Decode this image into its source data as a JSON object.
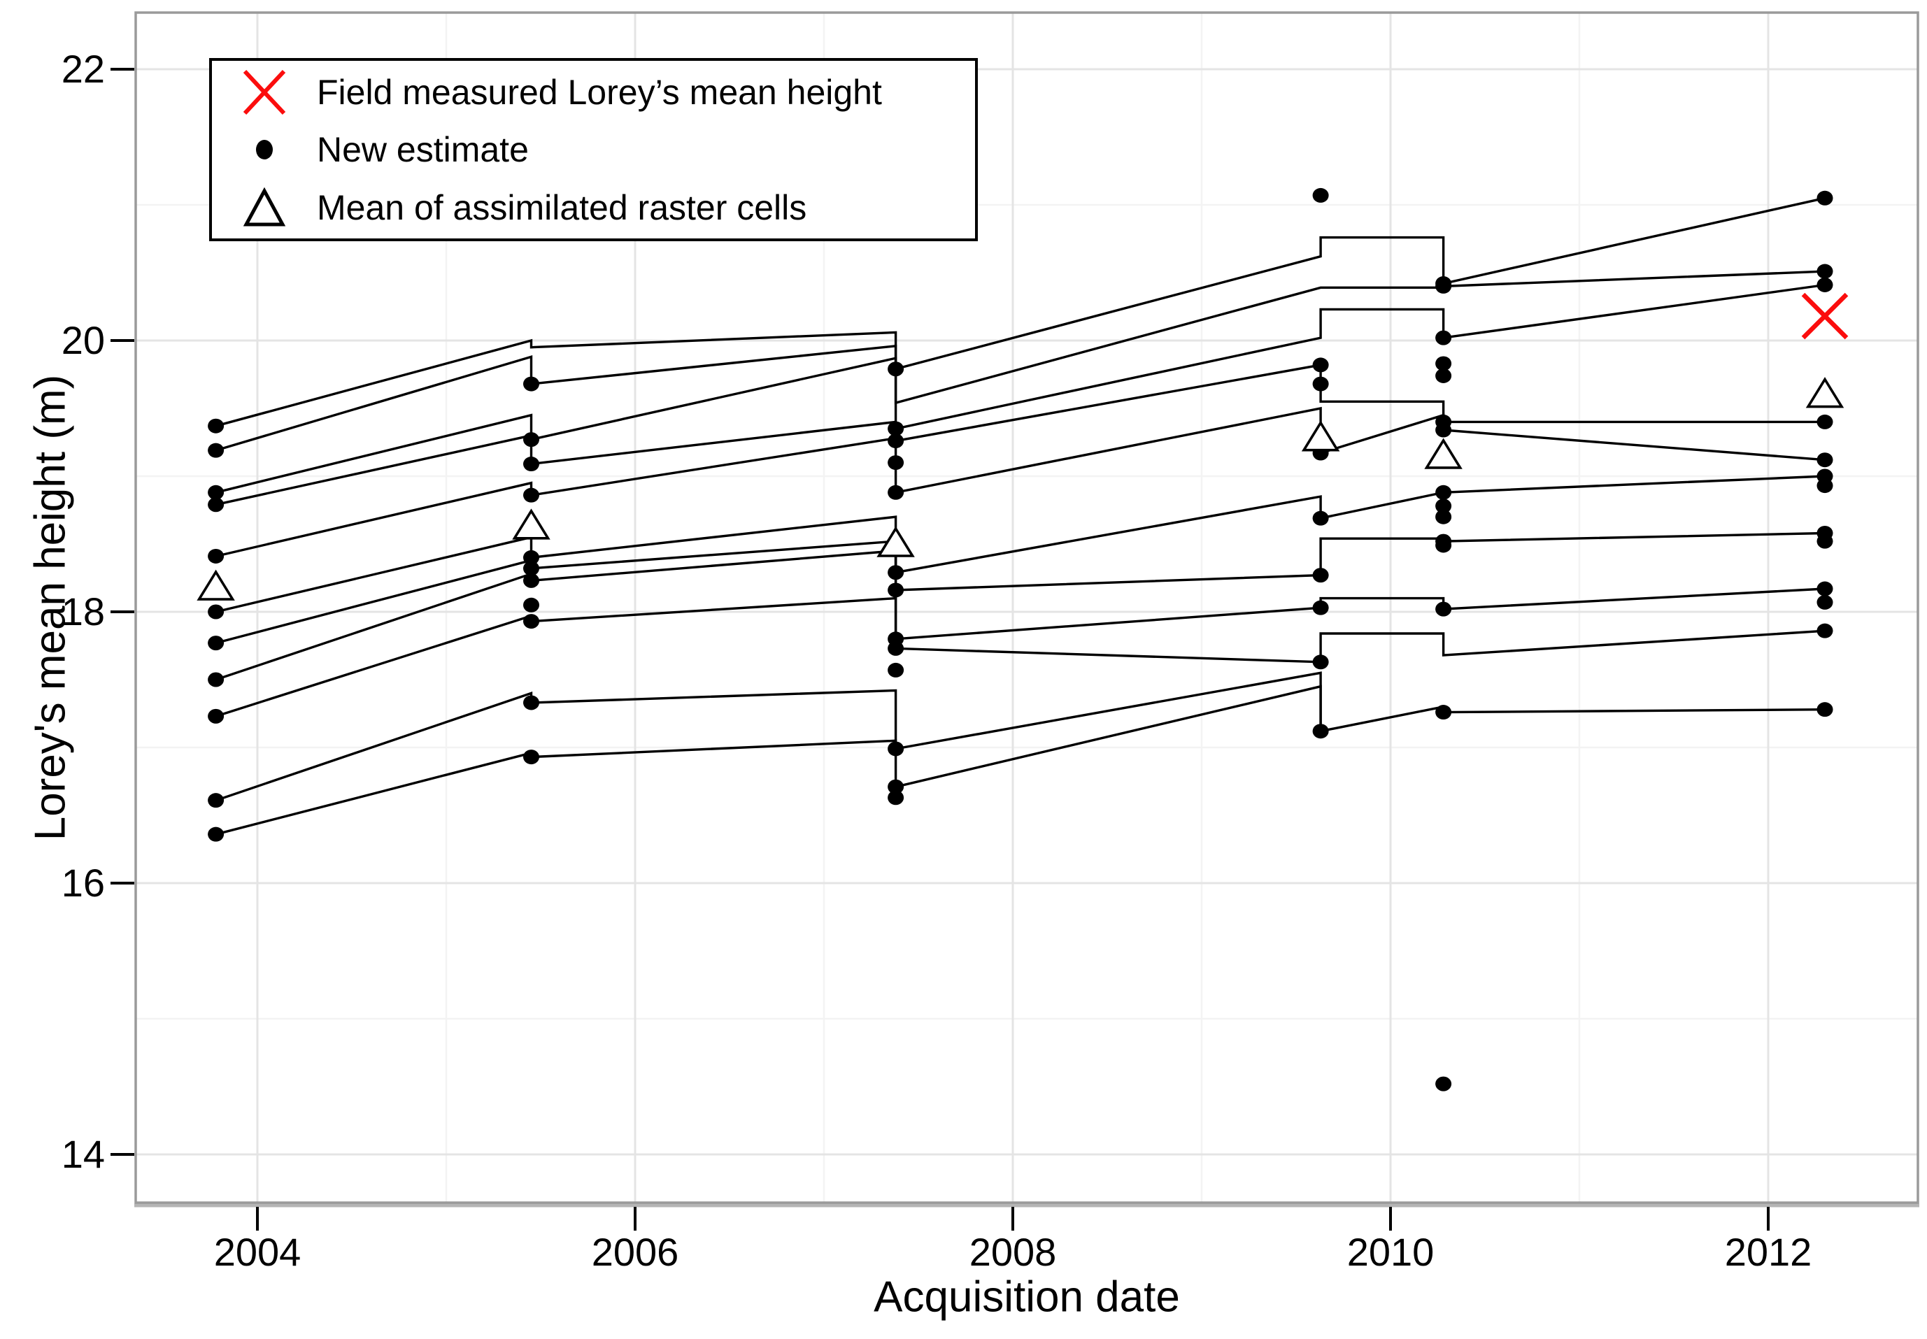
{
  "figure": {
    "background": "#ffffff",
    "accent_red": "#fb0d0d",
    "line_color": "#000000",
    "grid_major_color": "#e4e4e4",
    "grid_minor_color": "#f3f3f3",
    "panel_border_color": "#9a9a9a"
  },
  "legend": {
    "items": [
      {
        "symbol": "red-x",
        "label": "Field measured Lorey’s mean height"
      },
      {
        "symbol": "black-dot",
        "label": "New estimate"
      },
      {
        "symbol": "open-triangle",
        "label": "Mean of assimilated raster cells"
      }
    ]
  },
  "chart_data": {
    "type": "line",
    "title": "",
    "xlabel": "Acquisition date",
    "ylabel": "Lorey's mean height (m)",
    "xlim": [
      2003.36,
      2012.79
    ],
    "ylim": [
      13.64,
      22.42
    ],
    "grid": true,
    "legend_position": "top-left",
    "x_major_ticks": [
      2004,
      2006,
      2008,
      2010,
      2012
    ],
    "x_tick_labels": [
      "2004",
      "2006",
      "2008",
      "2010",
      "2012"
    ],
    "x_minor_ticks": [
      2005,
      2007,
      2009,
      2011
    ],
    "y_major_ticks": [
      14,
      16,
      18,
      20,
      22
    ],
    "y_tick_labels": [
      "14",
      "16",
      "18",
      "20",
      "22"
    ],
    "y_minor_ticks": [
      15,
      17,
      19,
      21
    ],
    "acquisition_dates": [
      2003.78,
      2005.45,
      2007.38,
      2009.63,
      2010.28,
      2012.3
    ],
    "series": [
      {
        "name": "plot-01",
        "path": [
          [
            2003.78,
            19.37
          ],
          [
            2005.45,
            20.0
          ],
          [
            2005.45,
            19.95
          ],
          [
            2007.38,
            20.06
          ],
          [
            2007.38,
            19.79
          ],
          [
            2009.63,
            20.62
          ],
          [
            2009.63,
            20.76
          ],
          [
            2010.28,
            20.76
          ],
          [
            2010.28,
            20.42
          ],
          [
            2012.3,
            21.05
          ]
        ],
        "dots": [
          [
            2003.78,
            19.37
          ],
          [
            2007.38,
            19.79
          ],
          [
            2010.28,
            20.42
          ],
          [
            2012.3,
            21.05
          ]
        ]
      },
      {
        "name": "plot-02",
        "path": [
          [
            2003.78,
            19.19
          ],
          [
            2005.45,
            19.88
          ],
          [
            2005.45,
            19.68
          ],
          [
            2007.38,
            19.96
          ],
          [
            2007.38,
            19.54
          ],
          [
            2009.63,
            20.39
          ],
          [
            2010.28,
            20.39
          ],
          [
            2010.28,
            20.4
          ],
          [
            2012.3,
            20.51
          ]
        ],
        "dots": [
          [
            2003.78,
            19.19
          ],
          [
            2005.45,
            19.68
          ],
          [
            2010.28,
            20.4
          ],
          [
            2012.3,
            20.51
          ]
        ]
      },
      {
        "name": "plot-03",
        "path": [
          [
            2003.78,
            18.88
          ],
          [
            2005.45,
            19.45
          ],
          [
            2005.45,
            19.27
          ],
          [
            2007.38,
            19.87
          ],
          [
            2007.38,
            19.35
          ],
          [
            2009.63,
            20.02
          ],
          [
            2009.63,
            20.23
          ],
          [
            2010.28,
            20.23
          ],
          [
            2010.28,
            20.02
          ],
          [
            2012.3,
            20.41
          ]
        ],
        "dots": [
          [
            2003.78,
            18.88
          ],
          [
            2005.45,
            19.27
          ],
          [
            2007.38,
            19.35
          ],
          [
            2010.28,
            20.02
          ],
          [
            2012.3,
            20.41
          ]
        ]
      },
      {
        "name": "plot-04",
        "path": [
          [
            2003.78,
            18.79
          ],
          [
            2005.45,
            19.3
          ],
          [
            2005.45,
            19.09
          ],
          [
            2007.38,
            19.4
          ],
          [
            2007.38,
            19.26
          ],
          [
            2009.63,
            19.82
          ],
          [
            2009.63,
            19.55
          ],
          [
            2010.28,
            19.55
          ],
          [
            2010.28,
            19.4
          ],
          [
            2012.3,
            19.4
          ]
        ],
        "dots": [
          [
            2003.78,
            18.79
          ],
          [
            2005.45,
            19.09
          ],
          [
            2007.38,
            19.26
          ],
          [
            2009.63,
            19.82
          ],
          [
            2010.28,
            19.4
          ],
          [
            2012.3,
            19.4
          ]
        ]
      },
      {
        "name": "plot-05",
        "path": [
          [
            2003.78,
            18.41
          ],
          [
            2005.45,
            18.95
          ],
          [
            2005.45,
            18.86
          ],
          [
            2007.38,
            19.28
          ],
          [
            2007.38,
            18.88
          ],
          [
            2009.63,
            19.5
          ],
          [
            2009.63,
            19.17
          ],
          [
            2010.28,
            19.45
          ],
          [
            2010.28,
            19.34
          ],
          [
            2012.3,
            19.12
          ]
        ],
        "dots": [
          [
            2003.78,
            18.41
          ],
          [
            2005.45,
            18.86
          ],
          [
            2007.38,
            18.88
          ],
          [
            2009.63,
            19.17
          ],
          [
            2010.28,
            19.34
          ],
          [
            2012.3,
            19.12
          ]
        ]
      },
      {
        "name": "plot-06",
        "path": [
          [
            2003.78,
            18.0
          ],
          [
            2005.45,
            18.55
          ],
          [
            2005.45,
            18.4
          ],
          [
            2007.38,
            18.7
          ],
          [
            2007.38,
            18.29
          ],
          [
            2009.63,
            18.85
          ],
          [
            2009.63,
            18.69
          ],
          [
            2010.28,
            18.88
          ],
          [
            2012.3,
            19.0
          ]
        ],
        "dots": [
          [
            2003.78,
            18.0
          ],
          [
            2005.45,
            18.4
          ],
          [
            2007.38,
            18.29
          ],
          [
            2009.63,
            18.69
          ],
          [
            2010.28,
            18.88
          ],
          [
            2012.3,
            19.0
          ]
        ]
      },
      {
        "name": "plot-07",
        "path": [
          [
            2003.78,
            17.77
          ],
          [
            2005.45,
            18.38
          ],
          [
            2005.45,
            18.32
          ],
          [
            2007.38,
            18.52
          ],
          [
            2007.38,
            18.16
          ],
          [
            2009.63,
            18.27
          ],
          [
            2009.63,
            18.54
          ],
          [
            2010.28,
            18.54
          ],
          [
            2010.28,
            18.52
          ],
          [
            2012.3,
            18.58
          ]
        ],
        "dots": [
          [
            2003.78,
            17.77
          ],
          [
            2005.45,
            18.32
          ],
          [
            2007.38,
            18.16
          ],
          [
            2009.63,
            18.27
          ],
          [
            2010.28,
            18.52
          ],
          [
            2012.3,
            18.58
          ]
        ]
      },
      {
        "name": "plot-08",
        "path": [
          [
            2003.78,
            17.5
          ],
          [
            2005.45,
            18.28
          ],
          [
            2005.45,
            18.23
          ],
          [
            2007.38,
            18.45
          ],
          [
            2007.38,
            17.8
          ],
          [
            2009.63,
            18.03
          ],
          [
            2009.63,
            18.1
          ],
          [
            2010.28,
            18.1
          ],
          [
            2010.28,
            18.02
          ],
          [
            2012.3,
            18.17
          ]
        ],
        "dots": [
          [
            2003.78,
            17.5
          ],
          [
            2005.45,
            18.23
          ],
          [
            2007.38,
            17.8
          ],
          [
            2009.63,
            18.03
          ],
          [
            2010.28,
            18.02
          ],
          [
            2012.3,
            18.17
          ]
        ]
      },
      {
        "name": "plot-09",
        "path": [
          [
            2003.78,
            17.23
          ],
          [
            2005.45,
            17.97
          ],
          [
            2005.45,
            17.93
          ],
          [
            2007.38,
            18.1
          ],
          [
            2007.38,
            17.73
          ],
          [
            2009.63,
            17.63
          ],
          [
            2009.63,
            17.84
          ],
          [
            2010.28,
            17.84
          ],
          [
            2010.28,
            17.68
          ],
          [
            2012.3,
            17.86
          ]
        ],
        "dots": [
          [
            2003.78,
            17.23
          ],
          [
            2005.45,
            17.93
          ],
          [
            2007.38,
            17.73
          ],
          [
            2009.63,
            17.63
          ],
          [
            2012.3,
            17.86
          ]
        ]
      },
      {
        "name": "plot-10",
        "path": [
          [
            2003.78,
            16.61
          ],
          [
            2005.45,
            17.4
          ],
          [
            2005.45,
            17.33
          ],
          [
            2007.38,
            17.42
          ],
          [
            2007.38,
            16.99
          ],
          [
            2009.63,
            17.55
          ],
          [
            2009.63,
            17.12
          ],
          [
            2010.28,
            17.3
          ],
          [
            2010.28,
            17.26
          ],
          [
            2012.3,
            17.28
          ]
        ],
        "dots": [
          [
            2003.78,
            16.61
          ],
          [
            2005.45,
            17.33
          ],
          [
            2007.38,
            16.99
          ],
          [
            2009.63,
            17.12
          ],
          [
            2010.28,
            17.26
          ],
          [
            2012.3,
            17.28
          ]
        ]
      },
      {
        "name": "plot-11",
        "path": [
          [
            2003.78,
            16.36
          ],
          [
            2005.45,
            16.96
          ],
          [
            2005.45,
            16.93
          ],
          [
            2007.38,
            17.05
          ],
          [
            2007.38,
            16.71
          ],
          [
            2009.63,
            17.45
          ],
          [
            2009.63,
            17.12
          ]
        ],
        "dots": [
          [
            2003.78,
            16.36
          ],
          [
            2005.45,
            16.93
          ],
          [
            2007.38,
            16.71
          ]
        ]
      }
    ],
    "extra_new_estimate_points": [
      [
        2009.63,
        21.07
      ],
      [
        2009.63,
        19.68
      ],
      [
        2010.28,
        19.83
      ],
      [
        2010.28,
        19.74
      ],
      [
        2010.28,
        18.78
      ],
      [
        2010.28,
        18.7
      ],
      [
        2010.28,
        18.49
      ],
      [
        2010.28,
        14.52
      ],
      [
        2012.3,
        18.93
      ],
      [
        2012.3,
        18.52
      ],
      [
        2012.3,
        18.07
      ],
      [
        2007.38,
        19.1
      ],
      [
        2007.38,
        17.57
      ],
      [
        2007.38,
        16.63
      ],
      [
        2005.45,
        18.05
      ]
    ],
    "mean_of_assimilated_raster_cells": [
      [
        2003.78,
        18.18
      ],
      [
        2005.45,
        18.63
      ],
      [
        2007.38,
        18.5
      ],
      [
        2009.63,
        19.28
      ],
      [
        2010.28,
        19.15
      ],
      [
        2012.3,
        19.6
      ]
    ],
    "field_measured_lorey_mean_height": [
      [
        2012.3,
        20.18
      ]
    ]
  }
}
